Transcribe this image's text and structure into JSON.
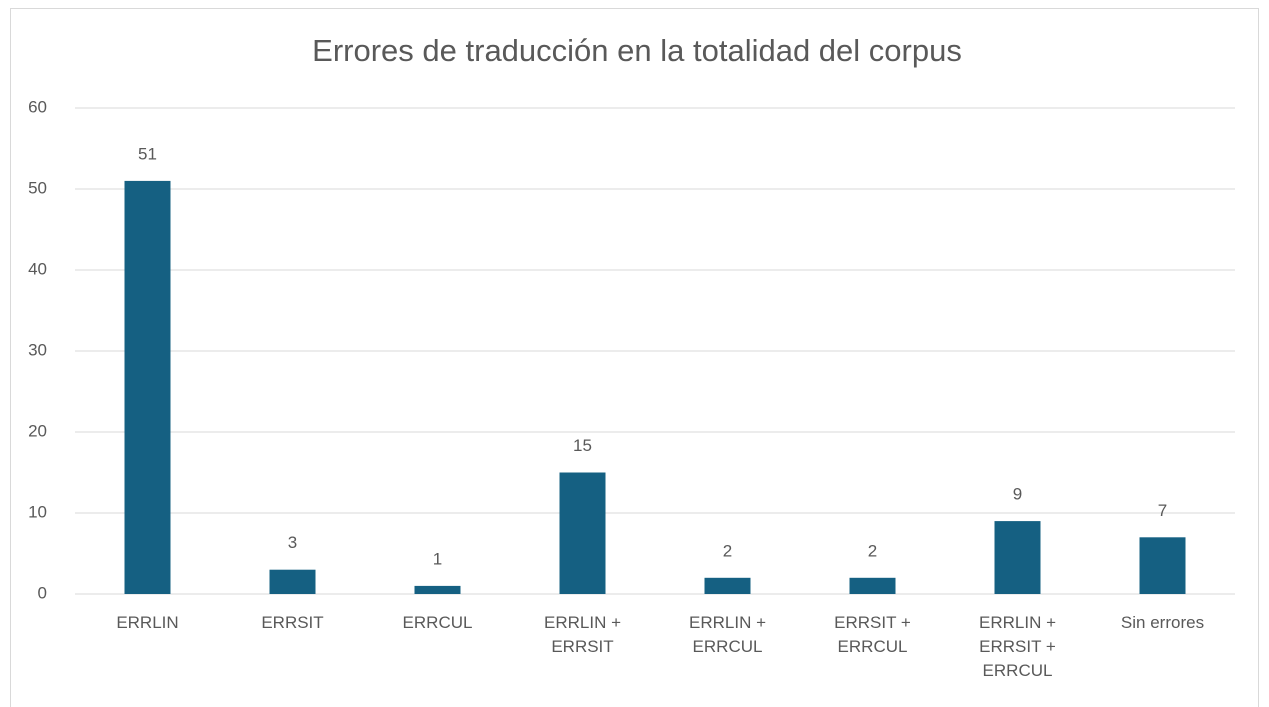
{
  "chart_data": {
    "type": "bar",
    "title": "Errores de traducción en la totalidad del corpus",
    "categories": [
      "ERRLIN",
      "ERRSIT",
      "ERRCUL",
      "ERRLIN + ERRSIT",
      "ERRLIN + ERRCUL",
      "ERRSIT + ERRCUL",
      "ERRLIN + ERRSIT + ERRCUL",
      "Sin errores"
    ],
    "values": [
      51,
      3,
      1,
      15,
      2,
      2,
      9,
      7
    ],
    "color": "#156082",
    "ylim": [
      0,
      60
    ],
    "yticks": [
      0,
      10,
      20,
      30,
      40,
      50,
      60
    ],
    "grid": true,
    "data_labels": true
  }
}
